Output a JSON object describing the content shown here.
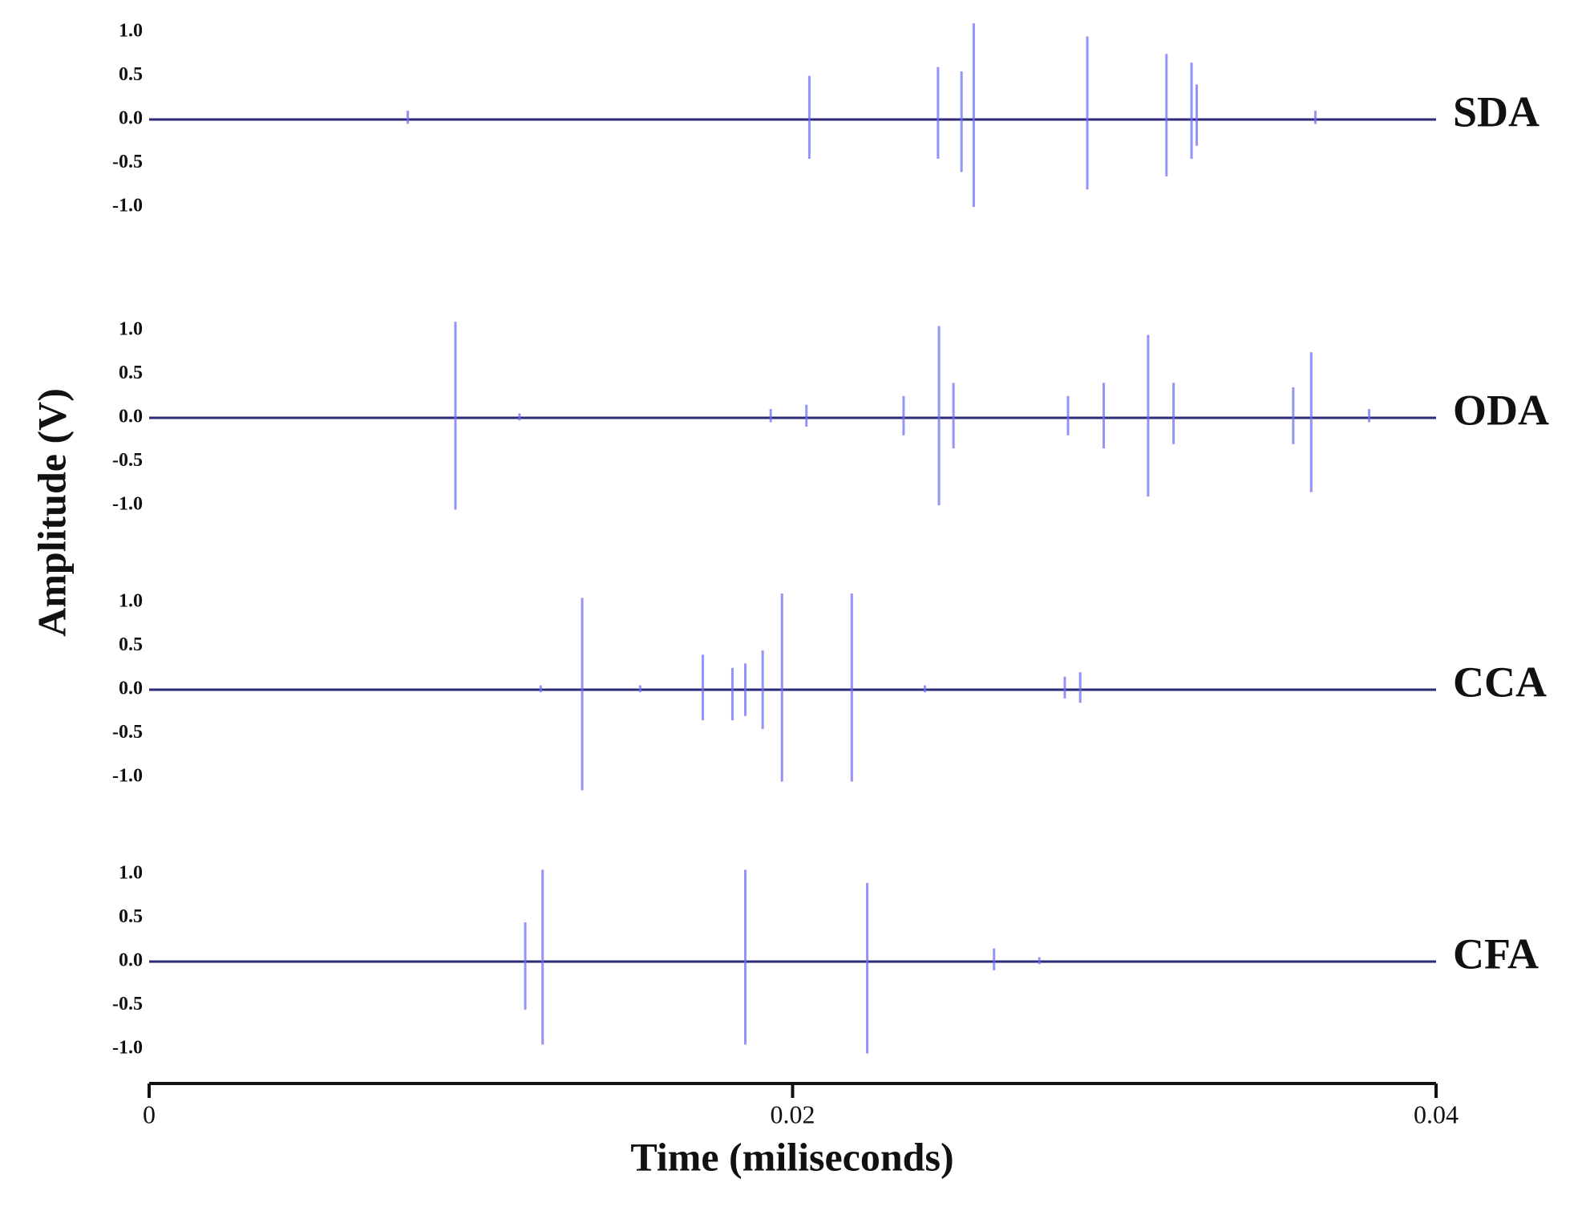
{
  "chart_data": {
    "type": "waveform",
    "xlabel": "Time (miliseconds)",
    "ylabel": "Amplitude (V)",
    "xlim": [
      0,
      0.04
    ],
    "xticks": [
      0,
      0.02,
      0.04
    ],
    "ylim": [
      -1,
      1
    ],
    "yticks": [
      {
        "value": 1,
        "label": "1.0"
      },
      0.5,
      {
        "value": 0,
        "label": "0.0"
      },
      -0.5,
      {
        "value": -1,
        "label": "-1.0"
      }
    ],
    "series": [
      {
        "name": "SDA",
        "color": "#6f6ff5",
        "x": [
          0.00804,
          0.02052,
          0.02452,
          0.02525,
          0.02563,
          0.02916,
          0.03162,
          0.0324,
          0.03256,
          0.03625
        ],
        "max": [
          0.1,
          0.5,
          0.6,
          0.55,
          1.1,
          0.95,
          0.75,
          0.65,
          0.4,
          0.1
        ],
        "min": [
          -0.05,
          -0.45,
          -0.45,
          -0.6,
          -1.0,
          -0.8,
          -0.65,
          -0.45,
          -0.3,
          -0.05
        ]
      },
      {
        "name": "ODA",
        "color": "#6f6ff5",
        "x": [
          0.00952,
          0.01151,
          0.01932,
          0.02043,
          0.02345,
          0.02455,
          0.025,
          0.02856,
          0.02967,
          0.03105,
          0.03184,
          0.03556,
          0.03612,
          0.03792
        ],
        "max": [
          1.1,
          0.05,
          0.1,
          0.15,
          0.25,
          1.05,
          0.4,
          0.25,
          0.4,
          0.95,
          0.4,
          0.35,
          0.75,
          0.1
        ],
        "min": [
          -1.05,
          -0.03,
          -0.05,
          -0.1,
          -0.2,
          -1.0,
          -0.35,
          -0.2,
          -0.35,
          -0.9,
          -0.3,
          -0.3,
          -0.85,
          -0.05
        ]
      },
      {
        "name": "CCA",
        "color": "#6f6ff5",
        "x": [
          0.01217,
          0.01346,
          0.01526,
          0.01721,
          0.01813,
          0.01853,
          0.01907,
          0.01967,
          0.02184,
          0.02411,
          0.02846,
          0.02894
        ],
        "max": [
          0.05,
          1.05,
          0.05,
          0.4,
          0.25,
          0.3,
          0.45,
          1.1,
          1.1,
          0.05,
          0.15,
          0.2
        ],
        "min": [
          -0.03,
          -1.15,
          -0.03,
          -0.35,
          -0.35,
          -0.3,
          -0.45,
          -1.05,
          -1.05,
          -0.03,
          -0.1,
          -0.15
        ]
      },
      {
        "name": "CFA",
        "color": "#6f6ff5",
        "x": [
          0.01169,
          0.01223,
          0.01853,
          0.02232,
          0.02626,
          0.02767
        ],
        "max": [
          0.45,
          1.05,
          1.05,
          0.9,
          0.15,
          0.05
        ],
        "min": [
          -0.55,
          -0.95,
          -0.95,
          -1.05,
          -0.1,
          -0.03
        ]
      }
    ]
  }
}
